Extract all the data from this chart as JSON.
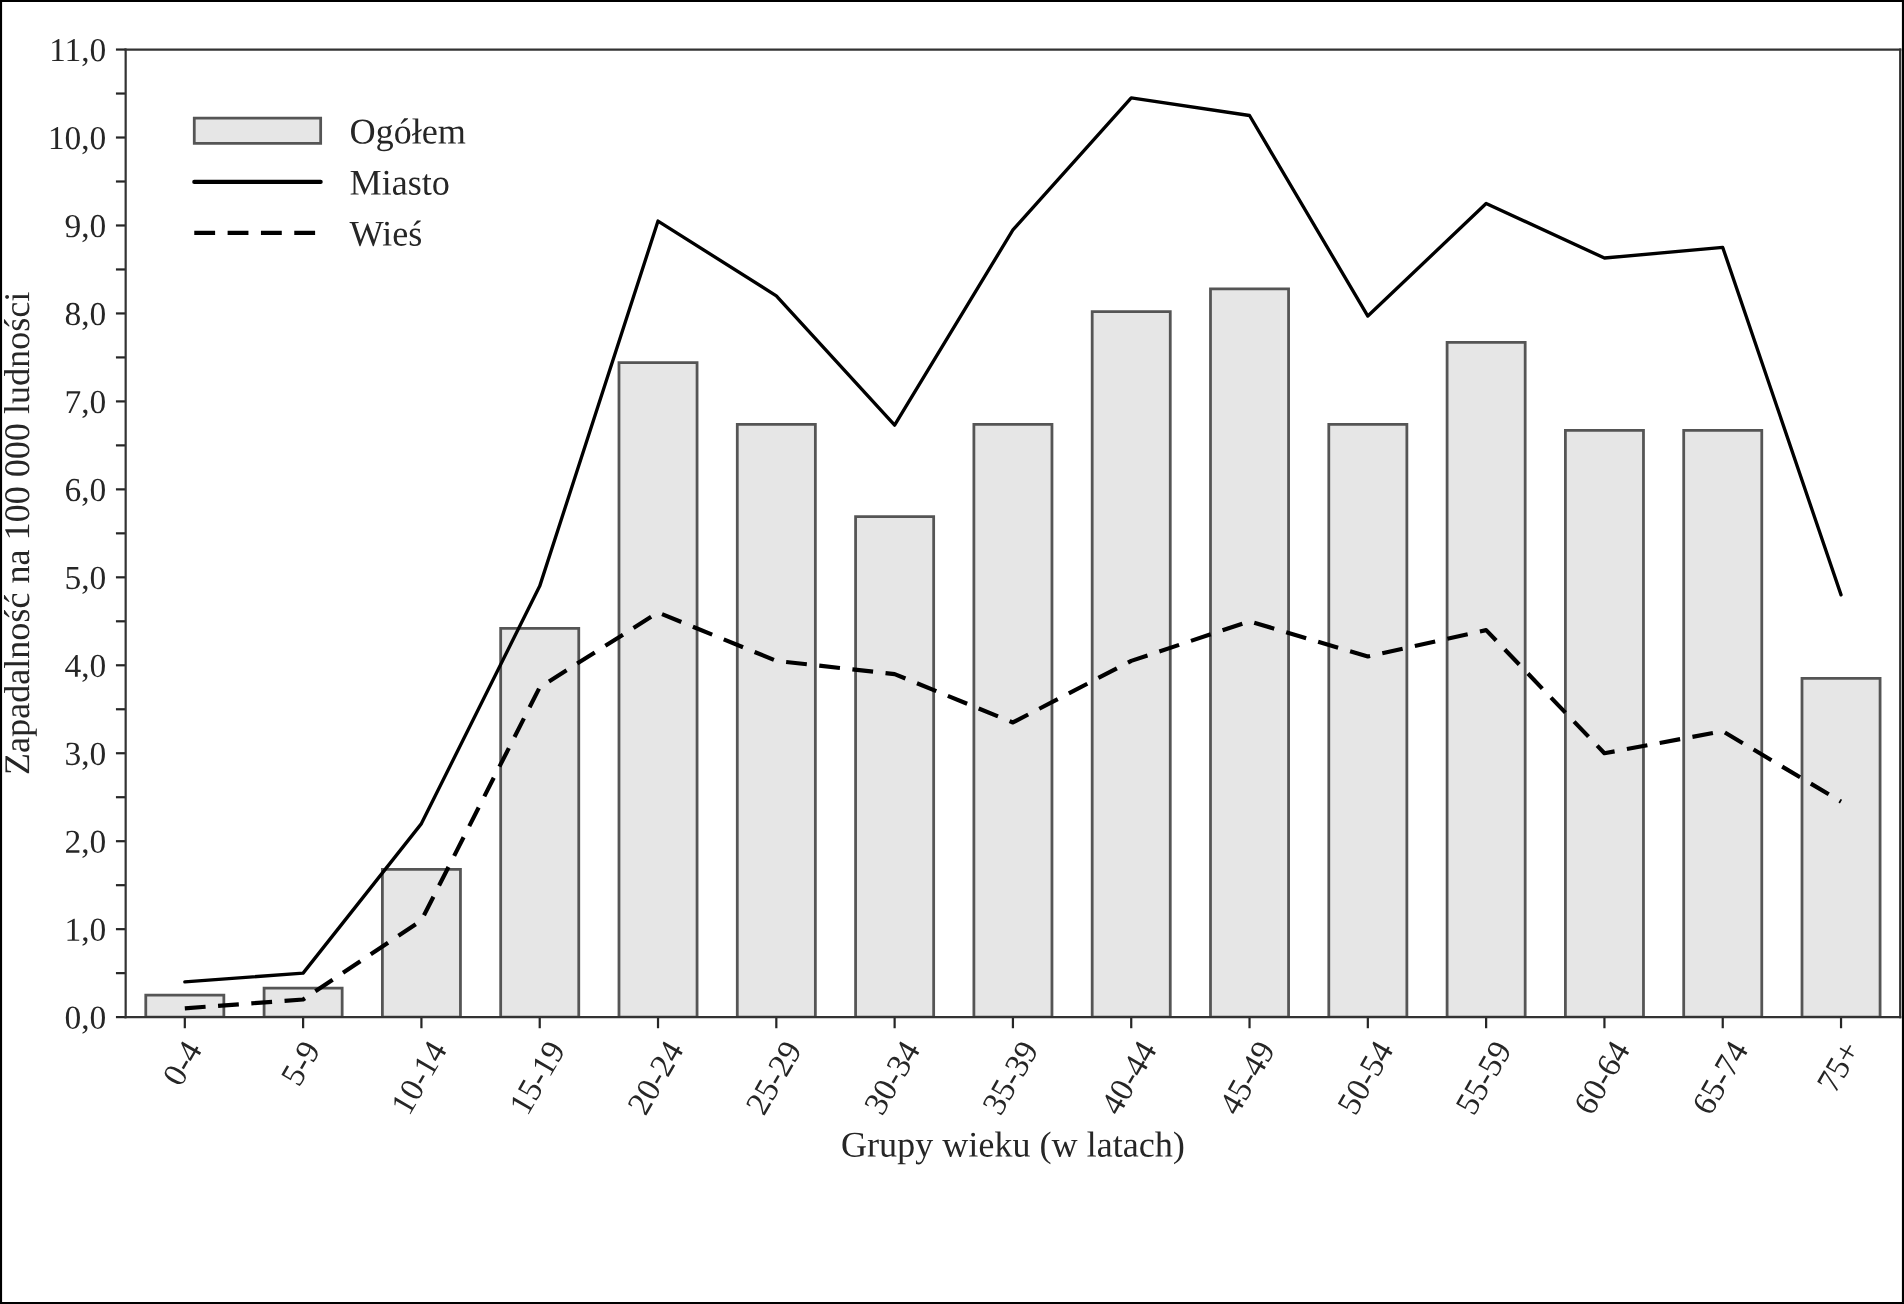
{
  "chart_data": {
    "type": "bar",
    "xlabel": "Grupy wieku (w latach)",
    "ylabel": "Zapadalność na 100 000 ludności",
    "categories": [
      "0-4",
      "5-9",
      "10-14",
      "15-19",
      "20-24",
      "25-29",
      "30-34",
      "35-39",
      "40-44",
      "45-49",
      "50-54",
      "55-59",
      "60-64",
      "65-74",
      "75+"
    ],
    "series": [
      {
        "name": "Ogółem",
        "color": "#e6e6e6",
        "values": [
          0.25,
          0.33,
          1.68,
          4.42,
          7.44,
          6.74,
          5.69,
          6.74,
          8.02,
          8.28,
          6.74,
          7.67,
          6.67,
          6.67,
          3.85
        ]
      },
      {
        "name": "Miasto",
        "type": "line",
        "line_style": "solid",
        "color": "#000000",
        "values": [
          0.4,
          0.5,
          2.2,
          4.9,
          9.05,
          8.2,
          6.73,
          8.95,
          10.45,
          10.25,
          7.97,
          9.25,
          8.63,
          8.75,
          4.8
        ]
      },
      {
        "name": "Wieś",
        "type": "line",
        "line_style": "dashed",
        "color": "#000000",
        "values": [
          0.1,
          0.2,
          1.1,
          3.75,
          4.6,
          4.05,
          3.9,
          3.35,
          4.05,
          4.5,
          4.1,
          4.4,
          3.0,
          3.25,
          2.45
        ]
      }
    ],
    "ylim": [
      0,
      11
    ],
    "yticks": [
      {
        "value": 0,
        "label": "0,0"
      },
      {
        "value": 0.5,
        "label": null
      },
      {
        "value": 1,
        "label": "1,0"
      },
      {
        "value": 1.5,
        "label": null
      },
      {
        "value": 2,
        "label": "2,0"
      },
      {
        "value": 2.5,
        "label": null
      },
      {
        "value": 3,
        "label": "3,0"
      },
      {
        "value": 3.5,
        "label": null
      },
      {
        "value": 4,
        "label": "4,0"
      },
      {
        "value": 4.5,
        "label": null
      },
      {
        "value": 5,
        "label": "5,0"
      },
      {
        "value": 5.5,
        "label": null
      },
      {
        "value": 6,
        "label": "6,0"
      },
      {
        "value": 6.5,
        "label": null
      },
      {
        "value": 7,
        "label": "7,0"
      },
      {
        "value": 7.5,
        "label": null
      },
      {
        "value": 8,
        "label": "8,0"
      },
      {
        "value": 8.5,
        "label": null
      },
      {
        "value": 9,
        "label": "9,0"
      },
      {
        "value": 9.5,
        "label": null
      },
      {
        "value": 10,
        "label": "10,0"
      },
      {
        "value": 10.5,
        "label": null
      },
      {
        "value": 11,
        "label": "11,0"
      }
    ],
    "grid": false,
    "legend": "top left"
  }
}
